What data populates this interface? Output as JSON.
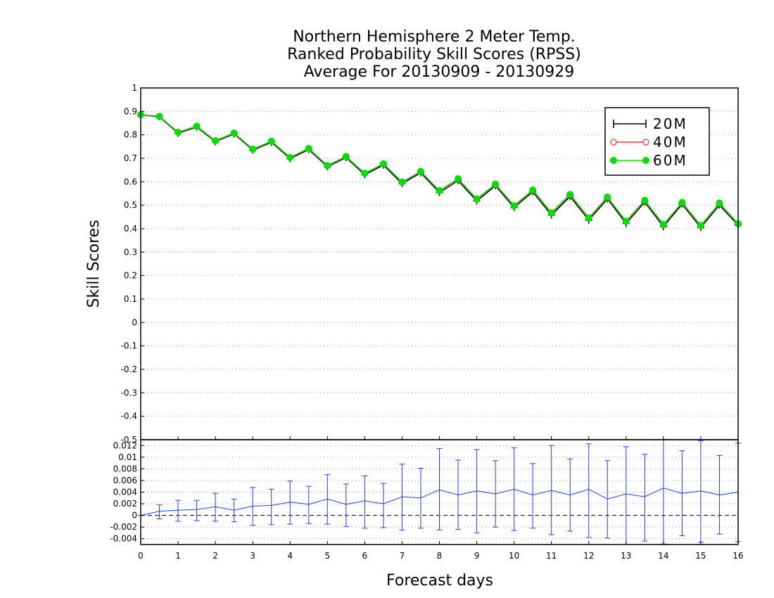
{
  "chart_data": [
    {
      "type": "line",
      "title": [
        "Northern Hemisphere 2 Meter Temp.",
        "Ranked Probability Skill Scores (RPSS)",
        "Average For 20130909 - 20130929"
      ],
      "ylabel": "Skill Scores",
      "ylim": [
        -0.5,
        1
      ],
      "yticks": [
        "1",
        "0.9",
        "0.8",
        "0.7",
        "0.6",
        "0.5",
        "0.4",
        "0.3",
        "0.2",
        "0.1",
        "0",
        "-0.1",
        "-0.2",
        "-0.3",
        "-0.4",
        "-0.5"
      ],
      "xlim": [
        0,
        16
      ],
      "grid": true,
      "legend": "top-right",
      "x": [
        0,
        0.5,
        1,
        1.5,
        2,
        2.5,
        3,
        3.5,
        4,
        4.5,
        5,
        5.5,
        6,
        6.5,
        7,
        7.5,
        8,
        8.5,
        9,
        9.5,
        10,
        10.5,
        11,
        11.5,
        12,
        12.5,
        13,
        13.5,
        14,
        14.5,
        15,
        15.5,
        16
      ],
      "series": [
        {
          "name": "20M",
          "color": "#000000",
          "marker": "plus",
          "values": [
            0.885,
            0.877,
            0.807,
            0.833,
            0.771,
            0.804,
            0.735,
            0.768,
            0.699,
            0.737,
            0.664,
            0.703,
            0.63,
            0.671,
            0.592,
            0.638,
            0.554,
            0.605,
            0.518,
            0.583,
            0.49,
            0.557,
            0.458,
            0.537,
            0.436,
            0.527,
            0.422,
            0.513,
            0.408,
            0.504,
            0.405,
            0.5,
            0.415
          ]
        },
        {
          "name": "40M",
          "color": "#ff3030",
          "marker": "open-circle",
          "values": [
            0.886,
            0.879,
            0.81,
            0.836,
            0.774,
            0.807,
            0.738,
            0.772,
            0.703,
            0.741,
            0.668,
            0.707,
            0.635,
            0.676,
            0.598,
            0.643,
            0.561,
            0.612,
            0.525,
            0.589,
            0.497,
            0.563,
            0.466,
            0.544,
            0.444,
            0.533,
            0.43,
            0.519,
            0.416,
            0.51,
            0.411,
            0.507,
            0.42
          ]
        },
        {
          "name": "60M",
          "color": "#00e000",
          "marker": "filled-circle",
          "values": [
            0.886,
            0.879,
            0.811,
            0.837,
            0.775,
            0.808,
            0.739,
            0.773,
            0.704,
            0.742,
            0.669,
            0.708,
            0.636,
            0.677,
            0.599,
            0.644,
            0.562,
            0.613,
            0.527,
            0.59,
            0.498,
            0.565,
            0.468,
            0.546,
            0.446,
            0.535,
            0.432,
            0.521,
            0.418,
            0.512,
            0.414,
            0.509,
            0.421
          ]
        }
      ]
    },
    {
      "type": "line",
      "xlabel": "Forecast days",
      "xticks": [
        "0",
        "1",
        "2",
        "3",
        "4",
        "5",
        "6",
        "7",
        "8",
        "9",
        "10",
        "11",
        "12",
        "13",
        "14",
        "15",
        "16"
      ],
      "xlim": [
        0,
        16
      ],
      "ylim": [
        -0.005,
        0.013
      ],
      "yticks": [
        "0.012",
        "0.01",
        "0.008",
        "0.006",
        "0.004",
        "0.002",
        "0",
        "-0.002",
        "-0.004"
      ],
      "grid": true,
      "x": [
        0,
        0.5,
        1,
        1.5,
        2,
        2.5,
        3,
        3.5,
        4,
        4.5,
        5,
        5.5,
        6,
        6.5,
        7,
        7.5,
        8,
        8.5,
        9,
        9.5,
        10,
        10.5,
        11,
        11.5,
        12,
        12.5,
        13,
        13.5,
        14,
        14.5,
        15,
        15.5,
        16
      ],
      "series": [
        {
          "color": "#1e3cff",
          "marker": "errorbar",
          "values": [
            0.0,
            0.0007,
            0.0009,
            0.001,
            0.0015,
            0.0009,
            0.0016,
            0.0017,
            0.0023,
            0.0019,
            0.0028,
            0.0019,
            0.0025,
            0.002,
            0.0032,
            0.003,
            0.0044,
            0.0035,
            0.0042,
            0.0037,
            0.0045,
            0.0035,
            0.0043,
            0.0035,
            0.0045,
            0.0028,
            0.0037,
            0.0032,
            0.0047,
            0.0038,
            0.0042,
            0.0035,
            0.004
          ],
          "lower": [
            0.0,
            -0.0006,
            -0.001,
            -0.0009,
            -0.001,
            -0.0011,
            -0.0017,
            -0.0016,
            -0.0015,
            -0.0014,
            -0.0015,
            -0.0019,
            -0.0022,
            -0.0021,
            -0.0025,
            -0.0022,
            -0.0025,
            -0.0024,
            -0.003,
            -0.002,
            -0.0026,
            -0.0022,
            -0.0033,
            -0.0027,
            -0.0038,
            -0.0039,
            -0.005,
            -0.0044,
            -0.0049,
            -0.0035,
            -0.0046,
            -0.0032,
            -0.0045
          ],
          "upper": [
            0.0,
            0.0018,
            0.0026,
            0.0026,
            0.0038,
            0.0028,
            0.0048,
            0.0045,
            0.0059,
            0.005,
            0.007,
            0.0054,
            0.0068,
            0.0055,
            0.0088,
            0.0081,
            0.0115,
            0.0095,
            0.0113,
            0.0094,
            0.0116,
            0.0089,
            0.012,
            0.0097,
            0.0123,
            0.0094,
            0.0118,
            0.0105,
            0.0135,
            0.0111,
            0.0128,
            0.0103,
            0.0124
          ]
        }
      ]
    }
  ]
}
